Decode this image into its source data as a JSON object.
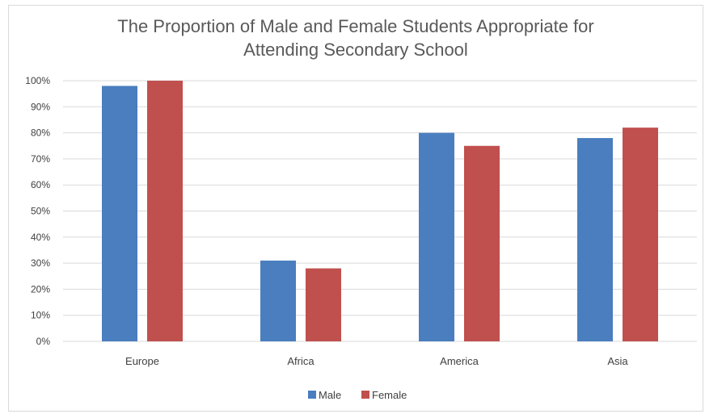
{
  "chart_data": {
    "type": "bar",
    "title_lines": [
      "The Proportion of Male and Female Students Appropriate for",
      "Attending Secondary School"
    ],
    "categories": [
      "Europe",
      "Africa",
      "America",
      "Asia"
    ],
    "series": [
      {
        "name": "Male",
        "color": "#4a7ebf",
        "values": [
          98,
          31,
          80,
          78
        ]
      },
      {
        "name": "Female",
        "color": "#c0504d",
        "values": [
          100,
          28,
          75,
          82
        ]
      }
    ],
    "ylim": [
      0,
      100
    ],
    "yticks": [
      0,
      10,
      20,
      30,
      40,
      50,
      60,
      70,
      80,
      90,
      100
    ],
    "ytick_labels": [
      "0%",
      "10%",
      "20%",
      "30%",
      "40%",
      "50%",
      "60%",
      "70%",
      "80%",
      "90%",
      "100%"
    ],
    "grid": true,
    "legend_position": "bottom"
  }
}
